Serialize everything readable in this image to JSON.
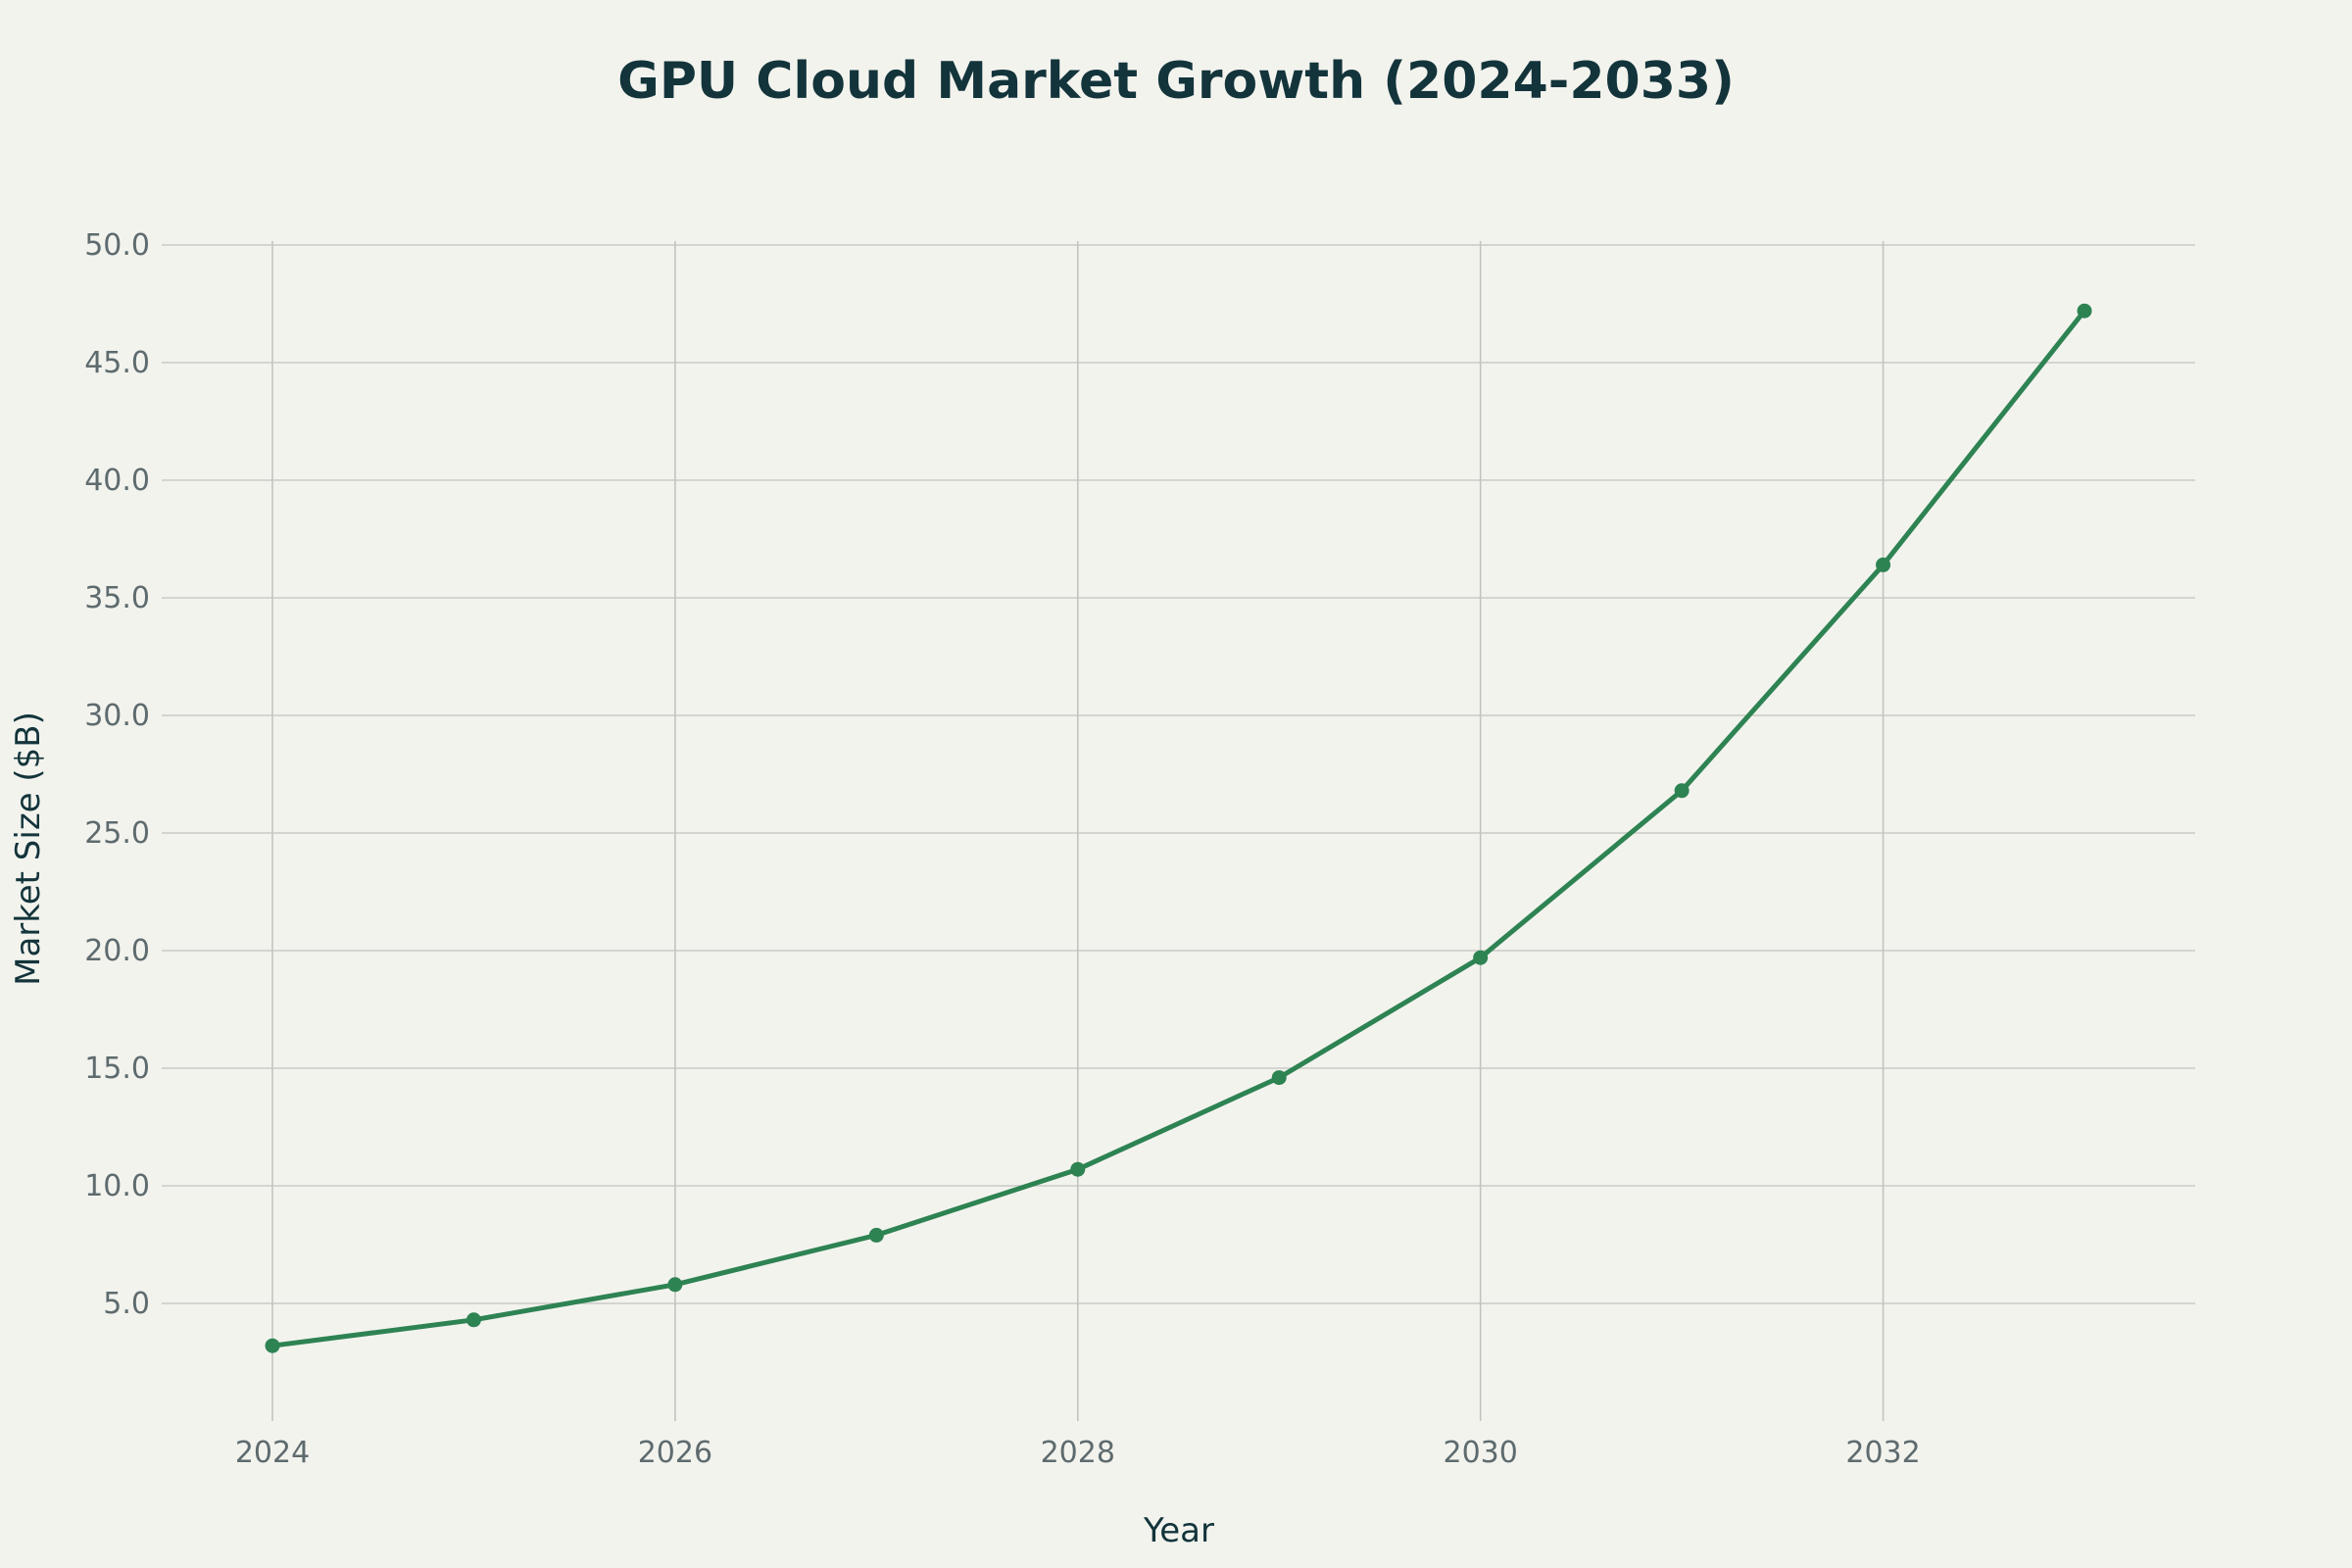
{
  "chart_data": {
    "type": "line",
    "title": "GPU Cloud Market Growth (2024-2033)",
    "xlabel": "Year",
    "ylabel": "Market Size ($B)",
    "x": [
      2024,
      2025,
      2026,
      2027,
      2028,
      2029,
      2030,
      2031,
      2032,
      2033
    ],
    "series": [
      {
        "values": [
          3.2,
          4.3,
          5.8,
          7.9,
          10.7,
          14.6,
          19.7,
          26.8,
          36.4,
          47.2
        ],
        "color": "#2E8353"
      }
    ],
    "xlim": [
      2023.45,
      2033.55
    ],
    "ylim": [
      0,
      50
    ],
    "x_ticks": [
      2024,
      2026,
      2028,
      2030,
      2032
    ],
    "x_tick_labels": [
      "2024",
      "2026",
      "2028",
      "2030",
      "2032"
    ],
    "y_ticks": [
      5,
      10,
      15,
      20,
      25,
      30,
      35,
      40,
      45,
      50
    ],
    "y_tick_labels": [
      "5.0",
      "10.0",
      "15.0",
      "20.0",
      "25.0",
      "30.0",
      "35.0",
      "40.0",
      "45.0",
      "50.0"
    ],
    "grid": true,
    "markers": true,
    "background_color": "#F3F3EE"
  }
}
